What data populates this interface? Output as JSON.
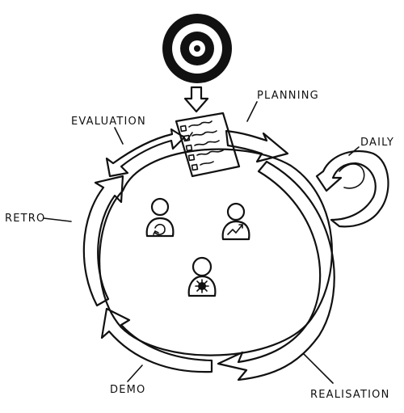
{
  "labels": {
    "planning": "PLANNING",
    "evaluation": "EVALUATION",
    "daily": "DAILY",
    "retro": "RETRO",
    "demo": "DEMO",
    "realisation": "REALISATION"
  },
  "colors": {
    "ink": "#111111",
    "background": "#ffffff"
  },
  "icons": {
    "target": "target-icon",
    "backlog": "checklist-icon",
    "people": [
      "person-cycle-icon",
      "person-chart-icon",
      "person-gear-icon"
    ]
  }
}
